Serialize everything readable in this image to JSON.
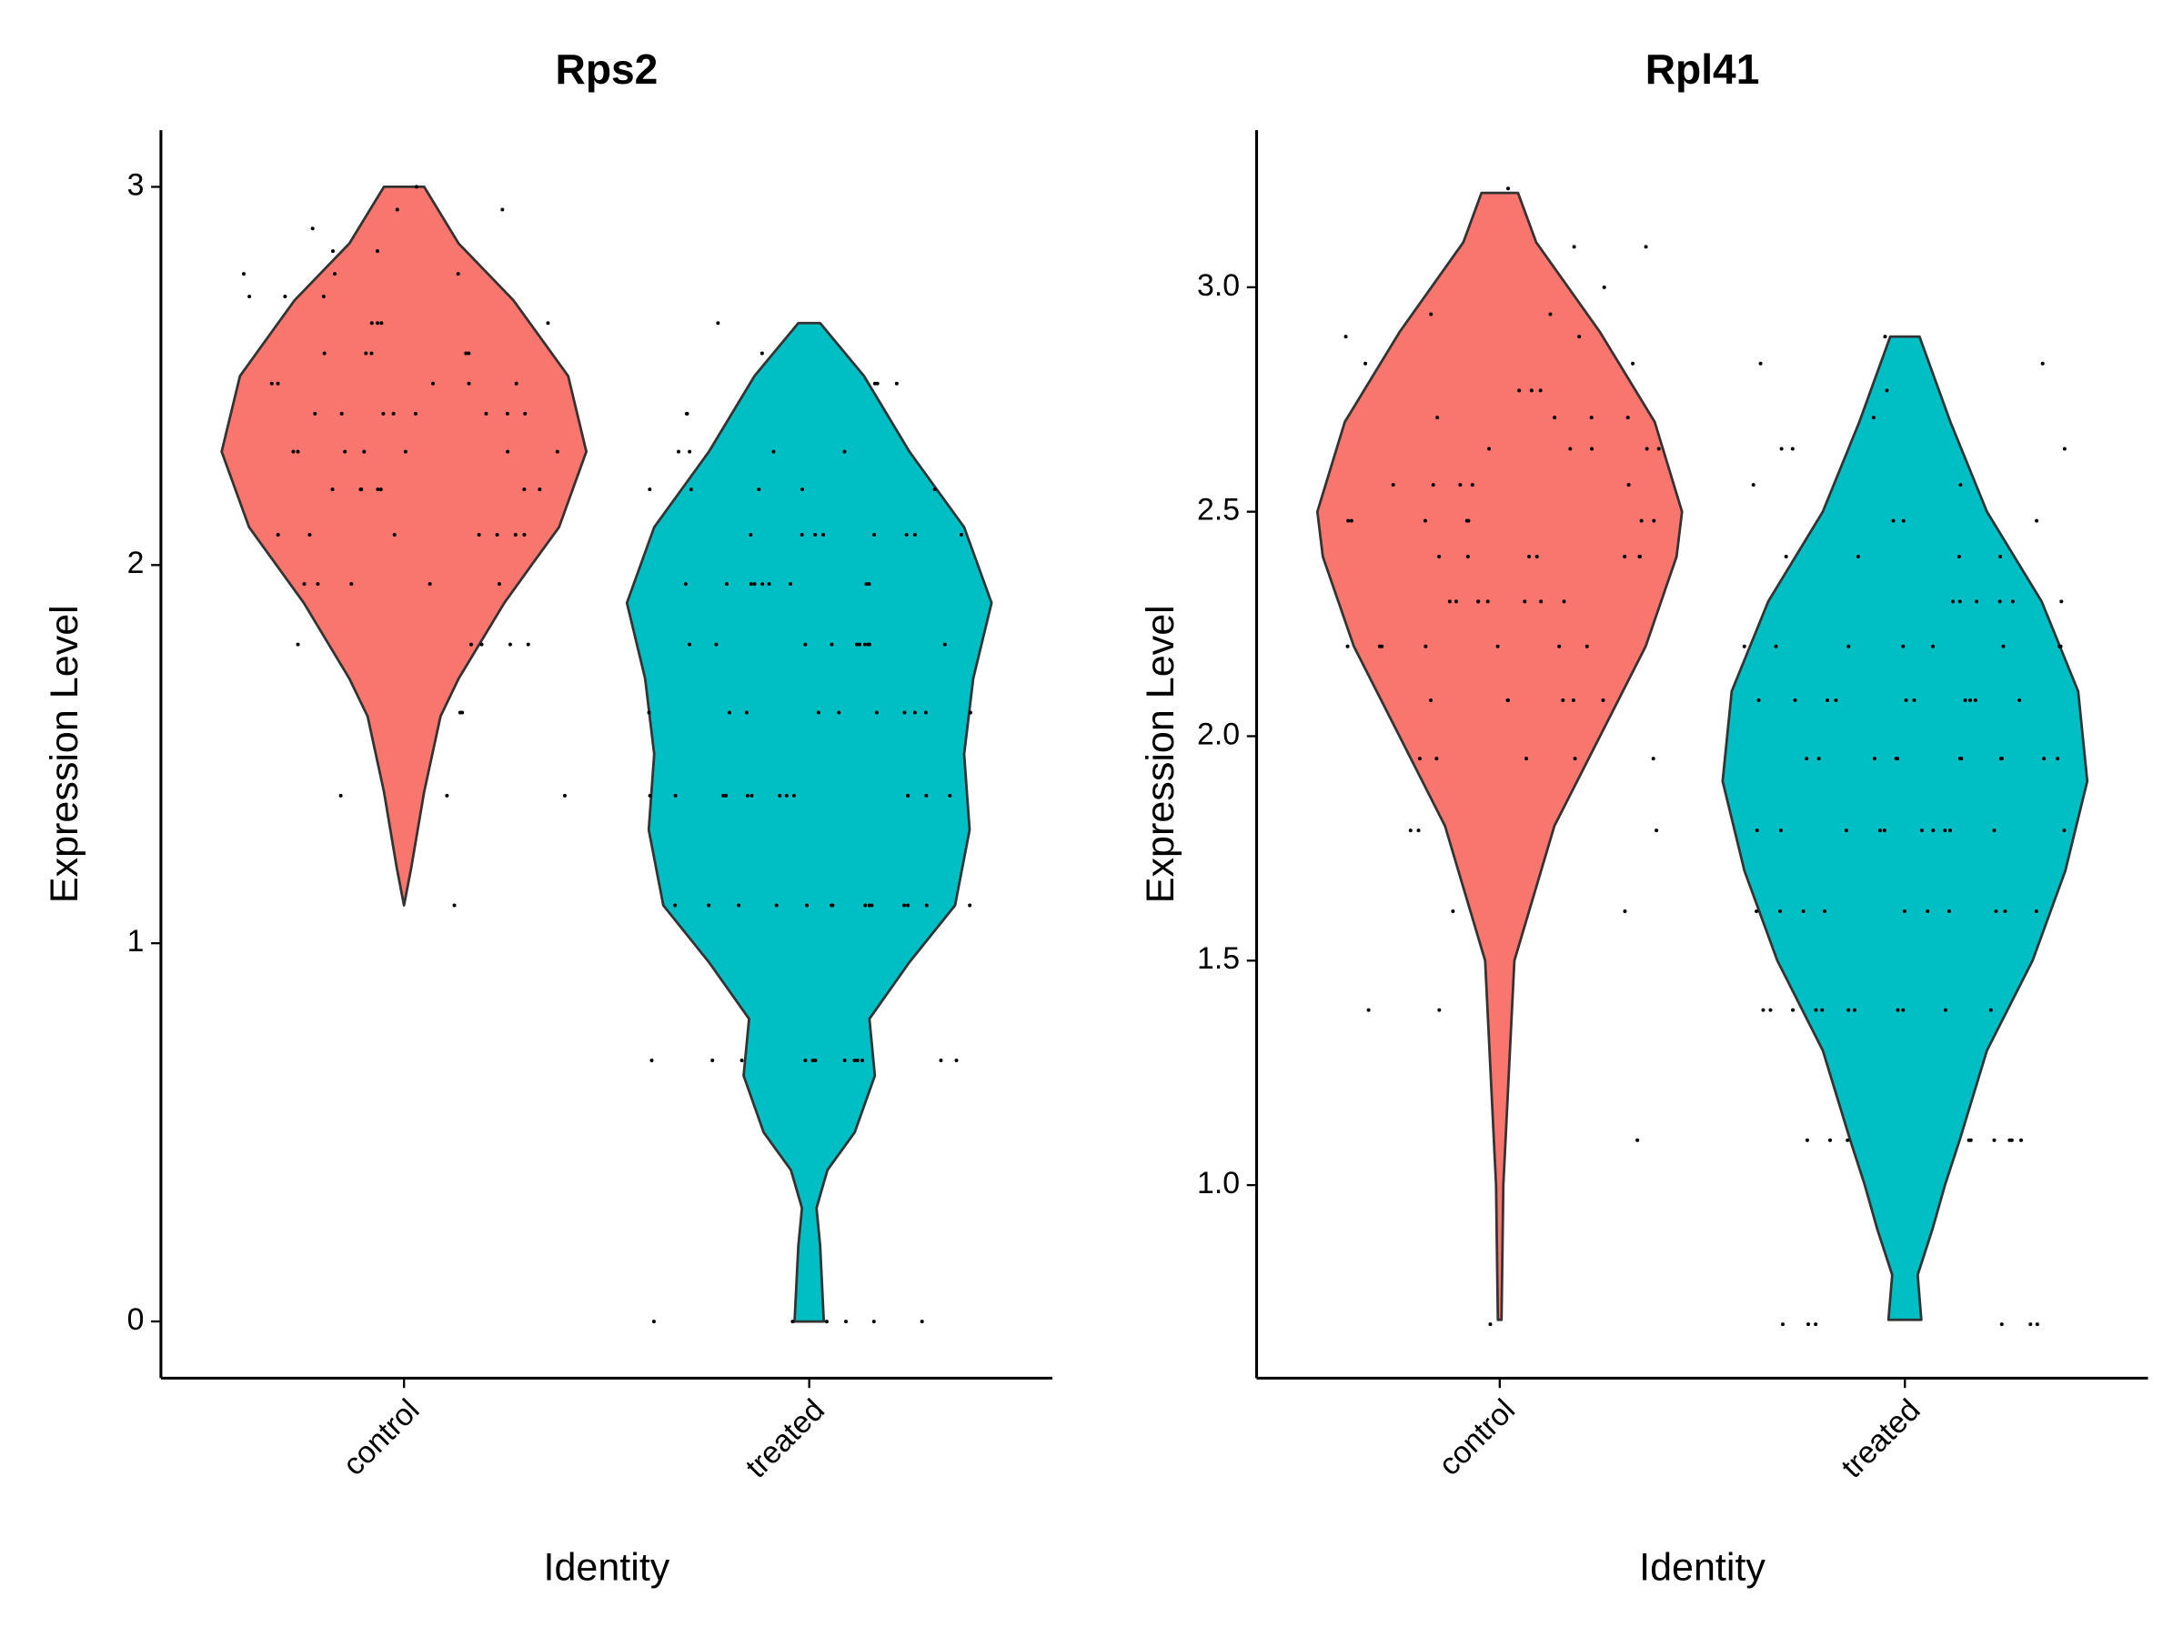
{
  "chart_data": [
    {
      "type": "violin",
      "title": "Rps2",
      "x_label": "Identity",
      "y_label": "Expression Level",
      "categories": [
        "control",
        "treated"
      ],
      "colors": [
        "#f8766d",
        "#00bfc4"
      ],
      "ylim": [
        -0.15,
        3.15
      ],
      "yticks": [
        0,
        1,
        2,
        3
      ],
      "violins": [
        {
          "y": [
            1.1,
            1.2,
            1.4,
            1.6,
            1.7,
            1.9,
            2.0,
            2.1,
            2.3,
            2.5,
            2.7,
            2.85,
            3.0
          ],
          "density": [
            0,
            0.04,
            0.11,
            0.2,
            0.3,
            0.55,
            0.7,
            0.85,
            1.0,
            0.9,
            0.6,
            0.3,
            0.11
          ]
        },
        {
          "y": [
            0,
            0.2,
            0.3,
            0.4,
            0.5,
            0.65,
            0.8,
            0.95,
            1.1,
            1.3,
            1.5,
            1.7,
            1.9,
            2.1,
            2.3,
            2.5,
            2.64
          ],
          "density": [
            0.08,
            0.06,
            0.04,
            0.1,
            0.25,
            0.36,
            0.33,
            0.55,
            0.8,
            0.88,
            0.85,
            0.9,
            1.0,
            0.85,
            0.55,
            0.3,
            0.06
          ]
        }
      ],
      "points": [
        [
          1.1,
          1.39,
          1.39,
          1.39,
          1.61,
          1.61,
          1.79,
          1.79,
          1.79,
          1.79,
          1.79,
          1.95,
          1.95,
          1.95,
          1.95,
          1.95,
          2.08,
          2.08,
          2.08,
          2.08,
          2.08,
          2.08,
          2.08,
          2.2,
          2.2,
          2.2,
          2.2,
          2.2,
          2.2,
          2.2,
          2.3,
          2.3,
          2.3,
          2.3,
          2.3,
          2.3,
          2.3,
          2.4,
          2.4,
          2.4,
          2.4,
          2.4,
          2.4,
          2.4,
          2.4,
          2.48,
          2.48,
          2.48,
          2.48,
          2.48,
          2.56,
          2.56,
          2.56,
          2.56,
          2.56,
          2.64,
          2.64,
          2.64,
          2.64,
          2.71,
          2.71,
          2.71,
          2.77,
          2.77,
          2.77,
          2.83,
          2.83,
          2.89,
          2.94,
          2.94,
          3.0
        ],
        [
          0,
          0,
          0,
          0,
          0,
          0,
          0.69,
          0.69,
          0.69,
          0.69,
          0.69,
          0.69,
          0.69,
          0.69,
          0.69,
          0.69,
          0.69,
          0.69,
          1.1,
          1.1,
          1.1,
          1.1,
          1.1,
          1.1,
          1.1,
          1.1,
          1.1,
          1.1,
          1.1,
          1.1,
          1.1,
          1.1,
          1.39,
          1.39,
          1.39,
          1.39,
          1.39,
          1.39,
          1.39,
          1.39,
          1.39,
          1.39,
          1.39,
          1.39,
          1.39,
          1.61,
          1.61,
          1.61,
          1.61,
          1.61,
          1.61,
          1.61,
          1.61,
          1.61,
          1.61,
          1.79,
          1.79,
          1.79,
          1.79,
          1.79,
          1.79,
          1.79,
          1.79,
          1.79,
          1.79,
          1.95,
          1.95,
          1.95,
          1.95,
          1.95,
          1.95,
          1.95,
          1.95,
          1.95,
          2.08,
          2.08,
          2.08,
          2.08,
          2.08,
          2.08,
          2.08,
          2.08,
          2.2,
          2.2,
          2.2,
          2.2,
          2.2,
          2.3,
          2.3,
          2.3,
          2.3,
          2.4,
          2.4,
          2.48,
          2.48,
          2.48,
          2.56,
          2.64
        ]
      ]
    },
    {
      "type": "violin",
      "title": "Rpl41",
      "x_label": "Identity",
      "y_label": "Expression Level",
      "categories": [
        "control",
        "treated"
      ],
      "colors": [
        "#f8766d",
        "#00bfc4"
      ],
      "ylim": [
        0.57,
        3.35
      ],
      "yticks": [
        {
          "value": 1,
          "label": "1.0"
        },
        1.5,
        {
          "value": 2,
          "label": "2.0"
        },
        2.5,
        {
          "value": 3,
          "label": "3.0"
        }
      ],
      "violins": [
        {
          "y": [
            0.7,
            1.0,
            1.5,
            1.8,
            2.0,
            2.2,
            2.4,
            2.5,
            2.7,
            2.9,
            3.1,
            3.21
          ],
          "density": [
            0.01,
            0.02,
            0.08,
            0.3,
            0.55,
            0.8,
            0.97,
            1.0,
            0.85,
            0.55,
            0.2,
            0.1
          ]
        },
        {
          "y": [
            0.7,
            0.8,
            0.9,
            1.0,
            1.1,
            1.3,
            1.5,
            1.7,
            1.9,
            2.1,
            2.3,
            2.5,
            2.7,
            2.89
          ],
          "density": [
            0.09,
            0.07,
            0.15,
            0.22,
            0.3,
            0.45,
            0.7,
            0.88,
            1.0,
            0.95,
            0.75,
            0.45,
            0.25,
            0.08
          ]
        }
      ],
      "points": [
        [
          0.69,
          1.1,
          1.39,
          1.39,
          1.61,
          1.61,
          1.79,
          1.79,
          1.79,
          1.95,
          1.95,
          1.95,
          1.95,
          1.95,
          2.08,
          2.08,
          2.08,
          2.08,
          2.08,
          2.08,
          2.2,
          2.2,
          2.2,
          2.2,
          2.2,
          2.2,
          2.2,
          2.3,
          2.3,
          2.3,
          2.3,
          2.3,
          2.3,
          2.3,
          2.3,
          2.4,
          2.4,
          2.4,
          2.4,
          2.4,
          2.4,
          2.4,
          2.48,
          2.48,
          2.48,
          2.48,
          2.48,
          2.48,
          2.48,
          2.56,
          2.56,
          2.56,
          2.56,
          2.56,
          2.64,
          2.64,
          2.64,
          2.64,
          2.64,
          2.71,
          2.71,
          2.71,
          2.71,
          2.77,
          2.77,
          2.77,
          2.83,
          2.83,
          2.89,
          2.89,
          2.94,
          2.94,
          3.0,
          3.09,
          3.09,
          3.22
        ],
        [
          0.69,
          0.69,
          0.69,
          0.69,
          0.69,
          0.69,
          1.1,
          1.1,
          1.1,
          1.1,
          1.1,
          1.1,
          1.1,
          1.1,
          1.1,
          1.39,
          1.39,
          1.39,
          1.39,
          1.39,
          1.39,
          1.39,
          1.39,
          1.39,
          1.39,
          1.39,
          1.61,
          1.61,
          1.61,
          1.61,
          1.61,
          1.61,
          1.61,
          1.61,
          1.61,
          1.61,
          1.79,
          1.79,
          1.79,
          1.79,
          1.79,
          1.79,
          1.79,
          1.79,
          1.79,
          1.79,
          1.79,
          1.95,
          1.95,
          1.95,
          1.95,
          1.95,
          1.95,
          1.95,
          1.95,
          1.95,
          1.95,
          1.95,
          2.08,
          2.08,
          2.08,
          2.08,
          2.08,
          2.08,
          2.08,
          2.08,
          2.08,
          2.08,
          2.2,
          2.2,
          2.2,
          2.2,
          2.2,
          2.2,
          2.2,
          2.2,
          2.3,
          2.3,
          2.3,
          2.3,
          2.3,
          2.3,
          2.4,
          2.4,
          2.4,
          2.4,
          2.48,
          2.48,
          2.48,
          2.56,
          2.56,
          2.64,
          2.64,
          2.64,
          2.71,
          2.77,
          2.83,
          2.83,
          2.89
        ]
      ]
    }
  ]
}
